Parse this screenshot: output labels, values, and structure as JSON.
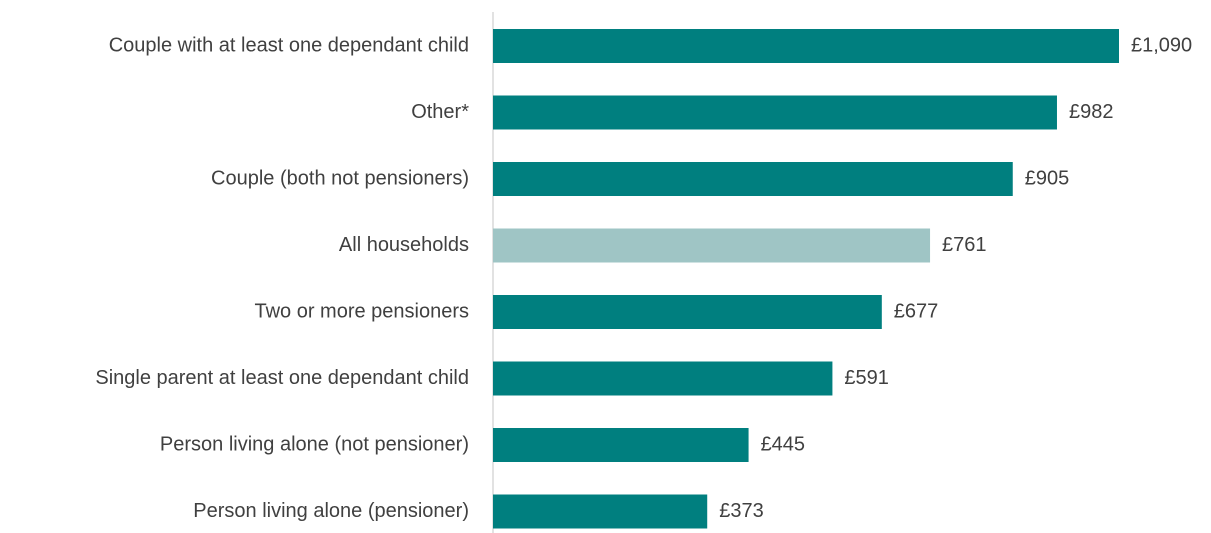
{
  "chart_data": {
    "type": "hbar",
    "categories": [
      "Couple with at least one dependant child",
      "Other*",
      "Couple (both not pensioners)",
      "All households",
      "Two or more pensioners",
      "Single parent at least one dependant child",
      "Person living alone (not pensioner)",
      "Person living alone (pensioner)"
    ],
    "values": [
      1090,
      982,
      905,
      761,
      677,
      591,
      445,
      373
    ],
    "value_labels": [
      "£1,090",
      "£982",
      "£905",
      "£761",
      "£677",
      "£591",
      "£445",
      "£373"
    ],
    "colors": [
      "#007f7f",
      "#007f7f",
      "#007f7f",
      "#9fc5c5",
      "#007f7f",
      "#007f7f",
      "#007f7f",
      "#007f7f"
    ]
  }
}
